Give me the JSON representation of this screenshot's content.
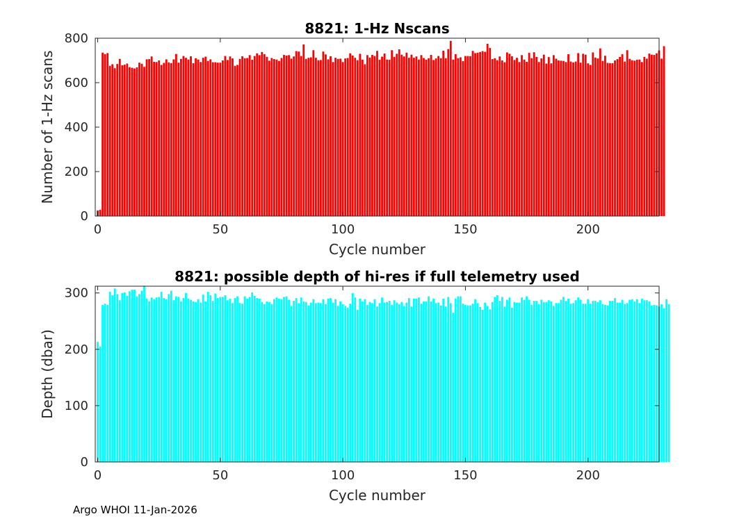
{
  "footer": "Argo WHOI 11-Jan-2026",
  "chart_data": [
    {
      "type": "bar",
      "title": "8821: 1-Hz Nscans",
      "xlabel": "Cycle number",
      "ylabel": "Number of 1-Hz scans",
      "xlim": [
        -1,
        229
      ],
      "ylim": [
        0,
        800
      ],
      "xticks": [
        0,
        50,
        100,
        150,
        200
      ],
      "yticks": [
        0,
        200,
        400,
        600,
        800
      ],
      "color": "#ff0000",
      "x_start": 0,
      "values": [
        25,
        28,
        735,
        728,
        733,
        676,
        683,
        665,
        684,
        707,
        678,
        681,
        686,
        670,
        667,
        664,
        669,
        690,
        685,
        671,
        705,
        706,
        718,
        694,
        693,
        700,
        680,
        689,
        705,
        691,
        688,
        705,
        729,
        690,
        707,
        720,
        712,
        704,
        719,
        688,
        710,
        704,
        693,
        712,
        717,
        698,
        705,
        692,
        692,
        690,
        690,
        700,
        720,
        702,
        718,
        709,
        676,
        680,
        707,
        719,
        710,
        711,
        724,
        703,
        720,
        732,
        724,
        738,
        728,
        716,
        699,
        711,
        706,
        704,
        698,
        711,
        725,
        722,
        724,
        708,
        718,
        742,
        740,
        720,
        772,
        707,
        712,
        714,
        746,
        712,
        701,
        702,
        740,
        727,
        705,
        719,
        693,
        712,
        707,
        708,
        693,
        709,
        711,
        732,
        722,
        712,
        701,
        730,
        703,
        683,
        724,
        713,
        725,
        720,
        743,
        703,
        717,
        731,
        704,
        703,
        746,
        716,
        730,
        750,
        726,
        718,
        735,
        712,
        726,
        712,
        718,
        704,
        724,
        711,
        703,
        710,
        725,
        702,
        709,
        720,
        710,
        744,
        710,
        751,
        788,
        704,
        728,
        710,
        714,
        697,
        720,
        720,
        719,
        743,
        733,
        735,
        738,
        742,
        739,
        775,
        756,
        706,
        710,
        701,
        718,
        700,
        692,
        736,
        730,
        719,
        702,
        712,
        693,
        724,
        704,
        694,
        734,
        710,
        737,
        716,
        693,
        709,
        726,
        686,
        715,
        687,
        724,
        708,
        700,
        699,
        698,
        693,
        728,
        695,
        691,
        695,
        733,
        690,
        730,
        726,
        687,
        680,
        736,
        713,
        709,
        754,
        698,
        721,
        689,
        688,
        688,
        700,
        706,
        716,
        728,
        695,
        746,
        707,
        701,
        699,
        703,
        704,
        693,
        716,
        708,
        731,
        726,
        725,
        732,
        745,
        708,
        764
      ]
    },
    {
      "type": "bar",
      "title": "8821: possible depth of hi-res if full telemetry used",
      "xlabel": "Cycle number",
      "ylabel": "Depth (dbar)",
      "xlim": [
        -1,
        229
      ],
      "ylim": [
        0,
        312
      ],
      "xticks": [
        0,
        50,
        100,
        150,
        200
      ],
      "yticks": [
        0,
        100,
        200,
        300
      ],
      "color": "#00ffff",
      "x_start": 0,
      "values": [
        213,
        205,
        279,
        281,
        279,
        302,
        296,
        308,
        298,
        287,
        300,
        301,
        295,
        303,
        306,
        306,
        294,
        298,
        304,
        313,
        290,
        285,
        292,
        289,
        292,
        293,
        302,
        291,
        289,
        298,
        304,
        287,
        294,
        293,
        285,
        291,
        300,
        290,
        288,
        285,
        284,
        289,
        283,
        297,
        285,
        302,
        296,
        286,
        299,
        291,
        293,
        293,
        296,
        287,
        290,
        282,
        291,
        294,
        282,
        281,
        294,
        290,
        293,
        301,
        295,
        291,
        290,
        284,
        280,
        285,
        284,
        280,
        289,
        292,
        290,
        289,
        293,
        294,
        288,
        277,
        286,
        291,
        282,
        292,
        285,
        284,
        278,
        283,
        289,
        282,
        283,
        282,
        289,
        280,
        290,
        291,
        283,
        289,
        277,
        285,
        280,
        277,
        274,
        281,
        300,
        292,
        270,
        290,
        285,
        289,
        279,
        284,
        282,
        289,
        276,
        282,
        292,
        283,
        284,
        286,
        279,
        287,
        283,
        280,
        284,
        277,
        283,
        291,
        276,
        290,
        290,
        292,
        281,
        285,
        285,
        294,
        285,
        290,
        282,
        283,
        278,
        290,
        276,
        293,
        282,
        265,
        290,
        294,
        294,
        281,
        279,
        278,
        278,
        281,
        289,
        282,
        275,
        270,
        283,
        277,
        271,
        284,
        293,
        296,
        286,
        293,
        276,
        288,
        292,
        274,
        284,
        283,
        283,
        292,
        288,
        294,
        288,
        279,
        286,
        286,
        280,
        288,
        284,
        284,
        287,
        285,
        277,
        282,
        282,
        288,
        293,
        286,
        290,
        281,
        282,
        287,
        292,
        288,
        281,
        281,
        289,
        281,
        286,
        286,
        284,
        287,
        280,
        279,
        278,
        286,
        286,
        291,
        283,
        283,
        288,
        280,
        282,
        288,
        289,
        285,
        289,
        282,
        290,
        287,
        287,
        285,
        278,
        279,
        278,
        276,
        280,
        273,
        289,
        280
      ]
    }
  ]
}
